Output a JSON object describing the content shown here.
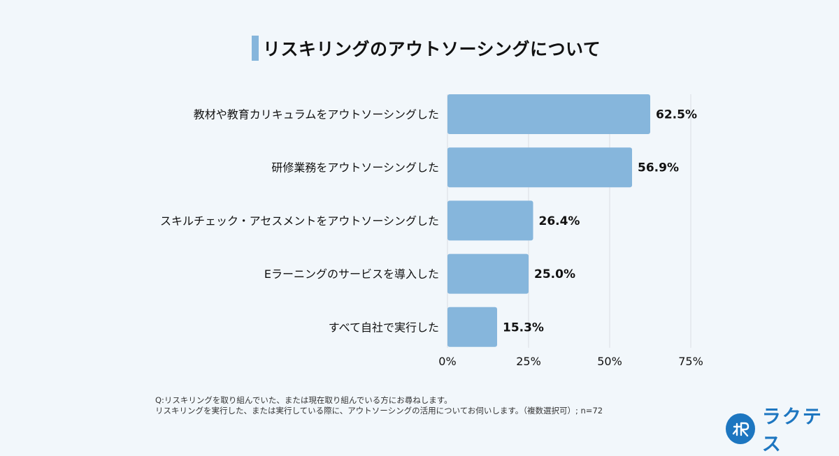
{
  "chart_data": {
    "type": "bar",
    "orientation": "horizontal",
    "title": "リスキリングのアウトソーシングについて",
    "categories": [
      "教材や教育カリキュラムをアウトソーシングした",
      "研修業務をアウトソーシングした",
      "スキルチェック・アセスメントをアウトソーシングした",
      "Eラーニングのサービスを導入した",
      "すべて自社で実行した"
    ],
    "values": [
      62.5,
      56.9,
      26.4,
      25.0,
      15.3
    ],
    "value_labels": [
      "62.5%",
      "56.9%",
      "26.4%",
      "25.0%",
      "15.3%"
    ],
    "xlim": [
      0,
      75
    ],
    "xticks": [
      0,
      25,
      50,
      75
    ],
    "xtick_labels": [
      "0%",
      "25%",
      "50%",
      "75%"
    ],
    "bar_color": "#86b6dc",
    "grid_color": "#d9dee3"
  },
  "footnote": {
    "line1": "Q:リスキリングを取り組んでいた、または現在取り組んでいる方にお尋ねします。",
    "line2": "リスキリングを実行した、または実行している際に、アウトソーシングの活用についてお伺いします。（複数選択可）; n=72"
  },
  "logo": {
    "text": "ラクテス",
    "color": "#1d76c0"
  }
}
